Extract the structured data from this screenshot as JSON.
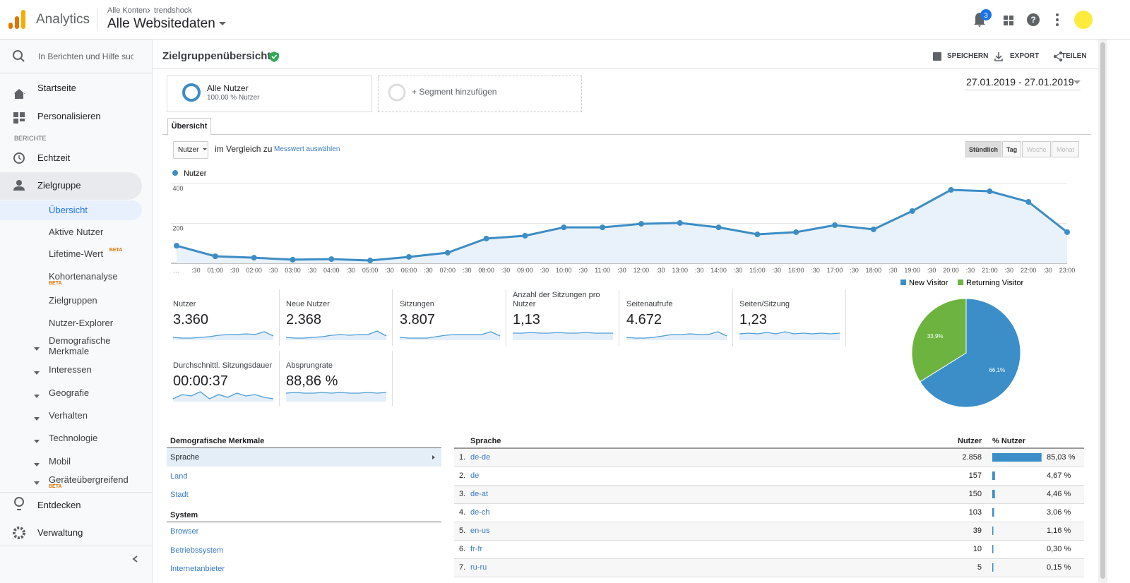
{
  "header": {
    "app": "Analytics",
    "breadcrumb": [
      "Alle Konten",
      "trendshock"
    ],
    "property": "Alle Websitedaten",
    "notifications": "3"
  },
  "sidebar": {
    "search": "In Berichten und Hilfe suche",
    "top": [
      "Startseite",
      "Personalisieren"
    ],
    "section": "BERICHTE",
    "reports": [
      "Echtzeit",
      "Zielgruppe"
    ],
    "sub": [
      {
        "label": "Übersicht",
        "active": true
      },
      {
        "label": "Aktive Nutzer"
      },
      {
        "label": "Lifetime-Wert",
        "badge": "BETA"
      },
      {
        "label": "Kohortenanalyse",
        "badge": "BETA"
      },
      {
        "label": "Zielgruppen"
      },
      {
        "label": "Nutzer-Explorer"
      },
      {
        "label": "Demografische Merkmale",
        "expand": true
      },
      {
        "label": "Interessen",
        "expand": true
      },
      {
        "label": "Geografie",
        "expand": true
      },
      {
        "label": "Verhalten",
        "expand": true
      },
      {
        "label": "Technologie",
        "expand": true
      },
      {
        "label": "Mobil",
        "expand": true
      },
      {
        "label": "Geräteübergreifend",
        "badge": "BETA",
        "expand": true
      }
    ],
    "bottom": [
      "Entdecken",
      "Verwaltung"
    ]
  },
  "page": {
    "title": "Zielgruppenübersicht",
    "actions": [
      "SPEICHERN",
      "EXPORT",
      "TEILEN"
    ],
    "segment": {
      "name": "Alle Nutzer",
      "detail": "100,00 % Nutzer"
    },
    "add_segment": "+ Segment hinzufügen",
    "date_range": "27.01.2019 - 27.01.2019",
    "tab": "Übersicht",
    "metric_select": "Nutzer",
    "compare": "im Vergleich zu",
    "compare_link": "Messwert auswählen",
    "granularity": [
      "Stündlich",
      "Tag",
      "Woche",
      "Monat"
    ],
    "granularity_enabled": [
      true,
      true,
      false,
      false
    ],
    "granularity_active": "Stündlich"
  },
  "metrics": [
    {
      "label": "Nutzer",
      "value": "3.360",
      "spark": [
        2,
        1.5,
        1.5,
        2,
        2.5,
        3.5,
        4,
        4,
        4.5,
        4,
        6,
        3
      ]
    },
    {
      "label": "Neue Nutzer",
      "value": "2.368",
      "spark": [
        2,
        1.5,
        1.5,
        2,
        2.5,
        3.5,
        4,
        3.5,
        4,
        4,
        6.5,
        3
      ]
    },
    {
      "label": "Sitzungen",
      "value": "3.807",
      "spark": [
        2,
        1.5,
        1.5,
        1.5,
        2.5,
        3.5,
        4,
        4,
        4,
        4,
        6,
        3
      ]
    },
    {
      "label": "Anzahl der Sitzungen pro Nutzer",
      "value": "1,13",
      "spark": [
        5,
        5,
        5.5,
        5,
        5,
        5.5,
        5,
        5,
        5.5,
        5,
        5,
        5
      ]
    },
    {
      "label": "Seitenaufrufe",
      "value": "4.672",
      "spark": [
        2,
        1.5,
        1.5,
        2,
        3,
        4,
        4,
        4.5,
        4,
        4,
        6,
        3
      ]
    },
    {
      "label": "Seiten/Sitzung",
      "value": "1,23",
      "spark": [
        4.5,
        5,
        4.5,
        5.5,
        4.5,
        6,
        4.5,
        5,
        4.5,
        5,
        4.5,
        5
      ]
    },
    {
      "label": "Durchschnittl. Sitzungsdauer",
      "value": "00:00:37",
      "spark": [
        2,
        5,
        4,
        7,
        2,
        5,
        3,
        6,
        4,
        5,
        3,
        2
      ]
    },
    {
      "label": "Absprungrate",
      "value": "88,86 %",
      "spark": [
        6,
        6.5,
        6,
        6,
        6.5,
        6,
        6.5,
        6,
        6,
        6.5,
        6,
        6.5
      ]
    }
  ],
  "spark_ylim": [
    0,
    10
  ],
  "spark_color": "#4d9dd6",
  "chart_data": [
    {
      "type": "line",
      "x_labels": [
        "…",
        ":30",
        "01:00",
        ":30",
        "02:00",
        ":30",
        "03:00",
        ":30",
        "04:00",
        ":30",
        "05:00",
        ":30",
        "06:00",
        ":30",
        "07:00",
        ":30",
        "08:00",
        ":30",
        "09:00",
        ":30",
        "10:00",
        ":30",
        "11:00",
        ":30",
        "12:00",
        ":30",
        "13:00",
        ":30",
        "14:00",
        ":30",
        "15:00",
        ":30",
        "16:00",
        ":30",
        "17:00",
        ":30",
        "18:00",
        ":30",
        "19:00",
        ":30",
        "20:00",
        ":30",
        "21:00",
        ":30",
        "22:00",
        ":30",
        "23:00"
      ],
      "series": [
        {
          "name": "Nutzer",
          "color": "#3c8dc5",
          "values": [
            88,
            35,
            28,
            18,
            21,
            14,
            32,
            53,
            124,
            138,
            180,
            180,
            198,
            202,
            180,
            145,
            156,
            191,
            170,
            262,
            368,
            361,
            308,
            156
          ]
        }
      ],
      "ylim": [
        0,
        400
      ],
      "yticks": [
        200,
        400
      ],
      "grid": true
    },
    {
      "type": "pie",
      "categories": [
        "New Visitor",
        "Returning Visitor"
      ],
      "values": [
        66.1,
        33.9
      ],
      "value_labels": [
        "66,1%",
        "33,9%"
      ],
      "colors": [
        "#3b8ec8",
        "#6db33f"
      ],
      "legend": "top"
    }
  ],
  "dimensions": [
    {
      "title": "Demografische Merkmale",
      "items": [
        "Sprache",
        "Land",
        "Stadt"
      ],
      "selected": "Sprache"
    },
    {
      "title": "System",
      "items": [
        "Browser",
        "Betriebssystem",
        "Internetanbieter"
      ]
    }
  ],
  "table": {
    "headers": [
      "Sprache",
      "Nutzer",
      "% Nutzer"
    ],
    "rows": [
      {
        "rank": "1.",
        "name": "de-de",
        "users": "2.858"
      },
      {
        "rank": "2.",
        "name": "de",
        "users": "157"
      },
      {
        "rank": "3.",
        "name": "de-at",
        "users": "150"
      },
      {
        "rank": "4.",
        "name": "de-ch",
        "users": "103"
      },
      {
        "rank": "5.",
        "name": "en-us",
        "users": "39"
      },
      {
        "rank": "6.",
        "name": "fr-fr",
        "users": "10"
      },
      {
        "rank": "7.",
        "name": "ru-ru",
        "users": "5"
      }
    ],
    "shares": [
      85.03,
      4.67,
      4.46,
      3.06,
      1.16,
      0.3,
      0.15
    ],
    "share_labels": [
      "85,03 %",
      "4,67 %",
      "4,46 %",
      "3,06 %",
      "1,16 %",
      "0,30 %",
      "0,15 %"
    ],
    "share_lim": [
      0,
      100
    ],
    "bar_color": "#3b8ec8"
  }
}
